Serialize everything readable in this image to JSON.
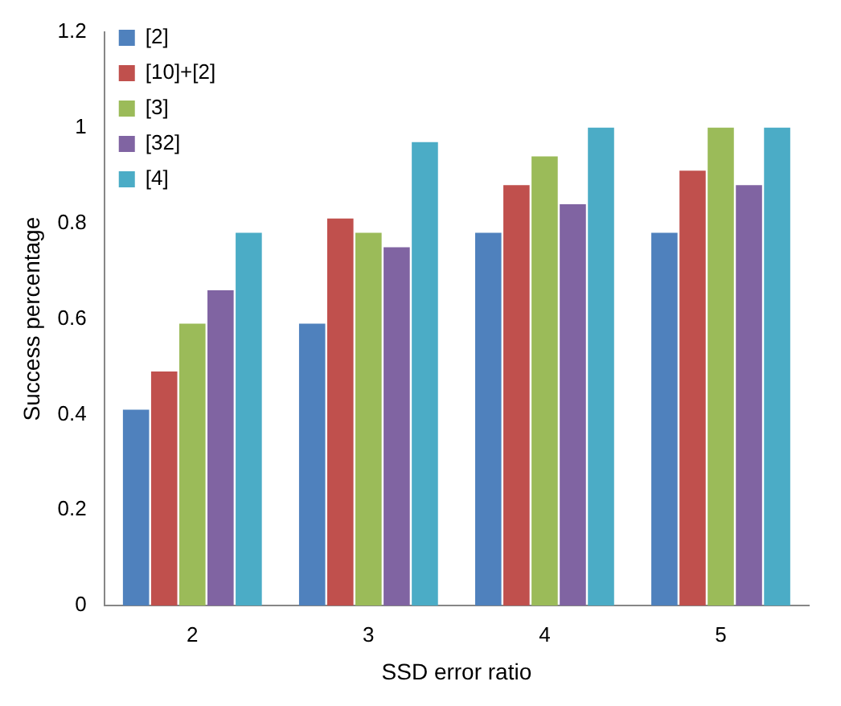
{
  "chart_data": {
    "type": "bar",
    "xlabel": "SSD error ratio",
    "ylabel": "Success percentage",
    "categories": [
      "2",
      "3",
      "4",
      "5"
    ],
    "series": [
      {
        "name": "[2]",
        "color": "#4f81bd",
        "values": [
          0.41,
          0.59,
          0.78,
          0.78
        ]
      },
      {
        "name": "[10]+[2]",
        "color": "#c0504d",
        "values": [
          0.49,
          0.81,
          0.88,
          0.91
        ]
      },
      {
        "name": "[3]",
        "color": "#9bbb59",
        "values": [
          0.59,
          0.78,
          0.94,
          1.0
        ]
      },
      {
        "name": "[32]",
        "color": "#8064a2",
        "values": [
          0.66,
          0.75,
          0.84,
          0.88
        ]
      },
      {
        "name": "[4]",
        "color": "#4bacc6",
        "values": [
          0.78,
          0.97,
          1.0,
          1.0
        ]
      }
    ],
    "ylim": [
      0,
      1.2
    ],
    "yticks": [
      0,
      0.2,
      0.4,
      0.6,
      0.8,
      1,
      1.2
    ],
    "grid": false,
    "legend": "top left"
  }
}
